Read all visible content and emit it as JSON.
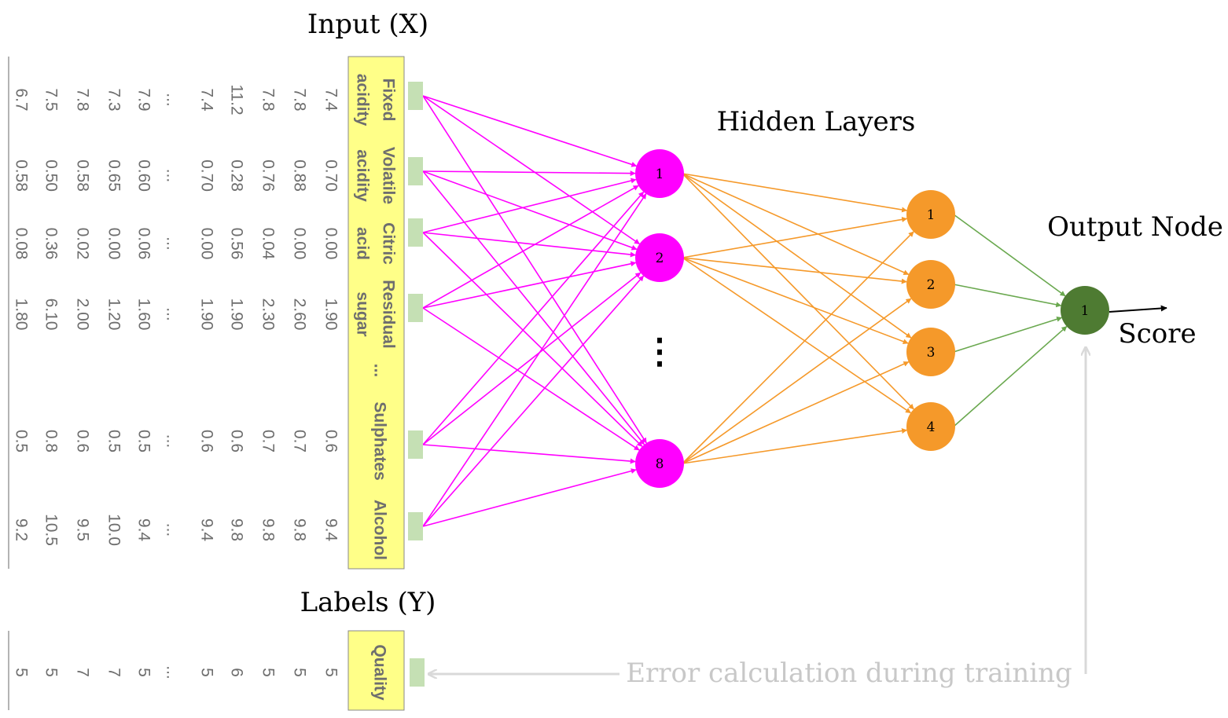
{
  "titles": {
    "input": "Input (X)",
    "labels": "Labels (Y)",
    "hidden": "Hidden Layers",
    "output": "Output Node",
    "score": "Score",
    "error": "Error calculation during training"
  },
  "input_table": {
    "headers": [
      [
        "Fixed",
        "acidity"
      ],
      [
        "Volatile",
        "acidity"
      ],
      [
        "Citric",
        "acid"
      ],
      [
        "Residual",
        "sugar"
      ],
      [
        "..."
      ],
      [
        "Sulphates"
      ],
      [
        "Alcohol"
      ]
    ],
    "columns": [
      [
        "7.4",
        "7.8",
        "7.8",
        "11.2",
        "7.4",
        "...",
        "7.9",
        "7.3",
        "7.8",
        "7.5",
        "6.7"
      ],
      [
        "0.70",
        "0.88",
        "0.76",
        "0.28",
        "0.70",
        "...",
        "0.60",
        "0.65",
        "0.58",
        "0.50",
        "0.58"
      ],
      [
        "0.00",
        "0.00",
        "0.04",
        "0.56",
        "0.00",
        "...",
        "0.06",
        "0.00",
        "0.02",
        "0.36",
        "0.08"
      ],
      [
        "1.90",
        "2.60",
        "2.30",
        "1.90",
        "1.90",
        "...",
        "1.60",
        "1.20",
        "2.00",
        "6.10",
        "1.80"
      ],
      [
        "",
        "",
        "",
        "",
        "",
        "",
        "",
        "",
        "",
        "",
        ""
      ],
      [
        "0.6",
        "0.7",
        "0.7",
        "0.6",
        "0.6",
        "...",
        "0.5",
        "0.5",
        "0.6",
        "0.8",
        "0.5"
      ],
      [
        "9.4",
        "9.8",
        "9.8",
        "9.8",
        "9.4",
        "...",
        "9.4",
        "10.0",
        "9.5",
        "10.5",
        "9.2"
      ]
    ]
  },
  "label_table": {
    "header": "Quality",
    "values": [
      "5",
      "5",
      "5",
      "6",
      "5",
      "...",
      "5",
      "7",
      "7",
      "5",
      "5"
    ]
  },
  "network": {
    "hidden1_nodes": [
      "1",
      "2",
      "8"
    ],
    "hidden1_ellipsis": "⋮",
    "hidden2_nodes": [
      "1",
      "2",
      "3",
      "4"
    ],
    "output_nodes": [
      "1"
    ]
  },
  "colors": {
    "highlight": "#ffff88",
    "input_marker": "#c5e0b4",
    "hidden1": "#ff00ff",
    "hidden2": "#f5992a",
    "output": "#4e7b32",
    "output_edge": "#6aa84f",
    "error_arrow": "#d9d9d9",
    "text_gray": "#6e6e6e"
  }
}
